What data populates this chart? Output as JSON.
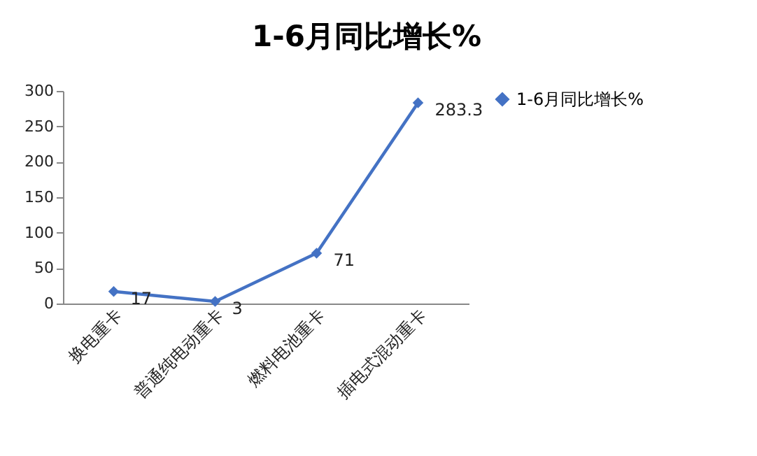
{
  "chart_data": {
    "type": "line",
    "title": "1-6月同比增长%",
    "categories": [
      "换电重卡",
      "普通纯电动重卡",
      "燃料电池重卡",
      "插电式混动重卡"
    ],
    "series": [
      {
        "name": "1-6月同比增长%",
        "color": "#4472c4",
        "values": [
          17,
          3,
          71,
          283.3
        ]
      }
    ],
    "ylim": [
      0,
      300
    ],
    "yticks": [
      0,
      50,
      100,
      150,
      200,
      250,
      300
    ],
    "grid": false,
    "legend": "right",
    "marker": "diamond",
    "line_style": "solid",
    "data_labels": true
  }
}
